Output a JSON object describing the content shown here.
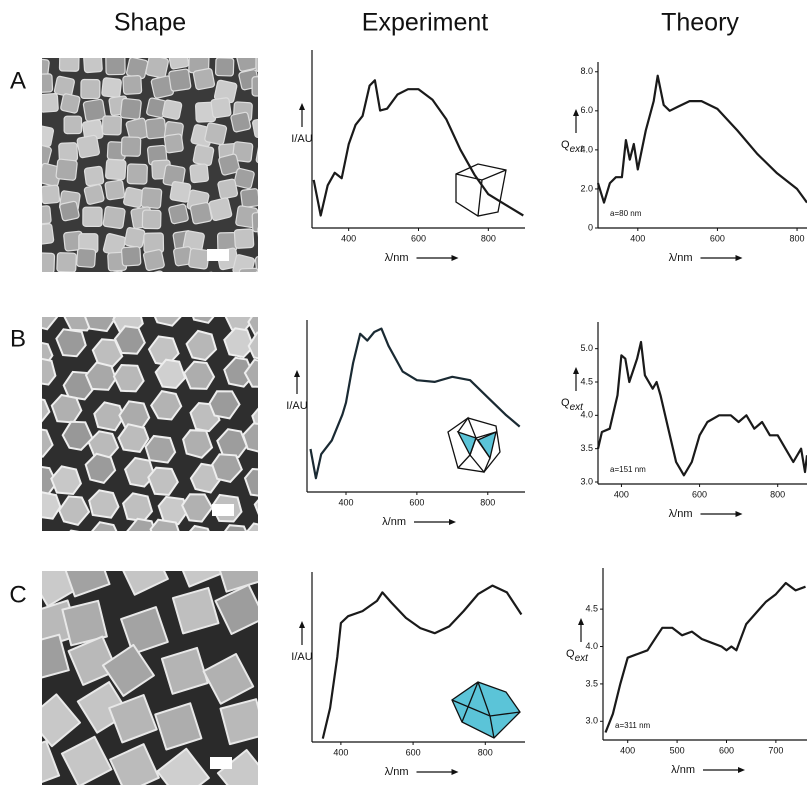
{
  "column_headers": [
    "Shape",
    "Experiment",
    "Theory"
  ],
  "row_labels": [
    "A",
    "B",
    "C"
  ],
  "chart_data": [
    {
      "type": "line",
      "xlabel": "λ/nm",
      "ylabel": "I/AU",
      "x": [
        300,
        320,
        340,
        360,
        380,
        400,
        420,
        440,
        460,
        475,
        490,
        510,
        540,
        570,
        600,
        640,
        680,
        720,
        760,
        800,
        850,
        900
      ],
      "series": [
        {
          "color": "#1a1a1a",
          "values": [
            0.27,
            0.07,
            0.24,
            0.31,
            0.28,
            0.47,
            0.58,
            0.63,
            0.8,
            0.83,
            0.66,
            0.67,
            0.75,
            0.78,
            0.78,
            0.72,
            0.61,
            0.44,
            0.3,
            0.19,
            0.13,
            0.07
          ]
        }
      ],
      "xlim": [
        295,
        905
      ],
      "ylim": [
        0,
        1
      ],
      "xticks": [
        400,
        600,
        800
      ]
    },
    {
      "type": "line",
      "xlabel": "λ/nm",
      "ylabel": "Q",
      "ylabel_subscript": "ext",
      "annotation": "a=80 nm",
      "x": [
        300,
        315,
        330,
        345,
        360,
        370,
        380,
        390,
        400,
        420,
        440,
        450,
        465,
        480,
        500,
        530,
        560,
        600,
        650,
        700,
        750,
        800,
        825
      ],
      "series": [
        {
          "color": "#1a1a1a",
          "values": [
            2.3,
            1.3,
            2.3,
            2.6,
            2.6,
            4.5,
            3.5,
            4.3,
            3.0,
            5.0,
            6.5,
            7.8,
            6.3,
            6.0,
            6.2,
            6.5,
            6.5,
            6.1,
            5.0,
            3.8,
            2.8,
            2.0,
            1.3
          ]
        }
      ],
      "xlim": [
        300,
        825
      ],
      "ylim": [
        0,
        8.5
      ],
      "xticks": [
        400,
        600,
        800
      ],
      "yticks": [
        0,
        {
          "value": 2,
          "label": "2.0"
        },
        {
          "value": 4,
          "label": "4.0"
        },
        {
          "value": 6,
          "label": "6.0"
        },
        {
          "value": 8,
          "label": "8.0"
        }
      ]
    },
    {
      "type": "line",
      "xlabel": "λ/nm",
      "ylabel": "I/AU",
      "x": [
        300,
        315,
        330,
        360,
        390,
        400,
        420,
        440,
        460,
        480,
        500,
        520,
        560,
        600,
        650,
        700,
        750,
        800,
        850,
        890
      ],
      "series": [
        {
          "color": "#1a2a33",
          "values": [
            0.25,
            0.08,
            0.22,
            0.3,
            0.45,
            0.52,
            0.75,
            0.92,
            0.88,
            0.93,
            0.95,
            0.85,
            0.7,
            0.65,
            0.64,
            0.67,
            0.65,
            0.55,
            0.45,
            0.38
          ]
        }
      ],
      "xlim": [
        290,
        905
      ],
      "ylim": [
        0,
        1
      ],
      "xticks": [
        400,
        600,
        800
      ]
    },
    {
      "type": "line",
      "xlabel": "λ/nm",
      "ylabel": "Q",
      "ylabel_subscript": "ext",
      "annotation": "a=151 nm",
      "x": [
        340,
        350,
        370,
        390,
        400,
        410,
        420,
        440,
        450,
        460,
        480,
        490,
        500,
        520,
        540,
        560,
        580,
        600,
        620,
        650,
        680,
        700,
        720,
        740,
        760,
        780,
        800,
        820,
        840,
        860,
        870,
        875
      ],
      "series": [
        {
          "color": "#1a1a1a",
          "values": [
            3.5,
            3.75,
            3.8,
            4.3,
            4.9,
            4.85,
            4.5,
            4.85,
            5.1,
            4.6,
            4.4,
            4.5,
            4.3,
            3.8,
            3.3,
            3.1,
            3.3,
            3.7,
            3.9,
            4.0,
            4.0,
            3.9,
            4.0,
            3.8,
            3.9,
            3.7,
            3.7,
            3.5,
            3.3,
            3.5,
            3.15,
            3.4
          ]
        }
      ],
      "xlim": [
        340,
        875
      ],
      "ylim": [
        2.97,
        5.4
      ],
      "xticks": [
        400,
        600,
        800
      ],
      "yticks": [
        {
          "value": 3,
          "label": "3.0"
        },
        3.5,
        {
          "value": 4,
          "label": "4.0"
        },
        4.5,
        {
          "value": 5,
          "label": "5.0"
        }
      ]
    },
    {
      "type": "line",
      "xlabel": "λ/nm",
      "ylabel": "I/AU",
      "x": [
        350,
        370,
        390,
        400,
        420,
        460,
        500,
        515,
        540,
        580,
        620,
        660,
        700,
        740,
        780,
        820,
        860,
        900
      ],
      "series": [
        {
          "color": "#1a1a1a",
          "values": [
            0.02,
            0.2,
            0.5,
            0.7,
            0.74,
            0.77,
            0.83,
            0.88,
            0.82,
            0.73,
            0.67,
            0.64,
            0.68,
            0.77,
            0.87,
            0.92,
            0.88,
            0.75
          ]
        }
      ],
      "xlim": [
        320,
        910
      ],
      "ylim": [
        0,
        1
      ],
      "xticks": [
        400,
        600,
        800
      ]
    },
    {
      "type": "line",
      "xlabel": "λ/nm",
      "ylabel": "Q",
      "ylabel_subscript": "ext",
      "annotation": "a=311 nm",
      "x": [
        355,
        370,
        385,
        400,
        420,
        440,
        460,
        470,
        490,
        510,
        530,
        550,
        570,
        590,
        600,
        610,
        620,
        640,
        660,
        680,
        700,
        720,
        740,
        760
      ],
      "series": [
        {
          "color": "#1a1a1a",
          "values": [
            2.85,
            3.1,
            3.5,
            3.85,
            3.9,
            3.95,
            4.15,
            4.25,
            4.25,
            4.15,
            4.2,
            4.1,
            4.05,
            4.0,
            3.95,
            4.0,
            3.95,
            4.3,
            4.45,
            4.6,
            4.7,
            4.85,
            4.75,
            4.8
          ]
        }
      ],
      "xlim": [
        350,
        763
      ],
      "ylim": [
        2.75,
        5.05
      ],
      "xticks": [
        400,
        500,
        600,
        700
      ],
      "yticks": [
        {
          "value": 3,
          "label": "3.0"
        },
        3.5,
        {
          "value": 4,
          "label": "4.0"
        },
        4.5
      ]
    }
  ]
}
